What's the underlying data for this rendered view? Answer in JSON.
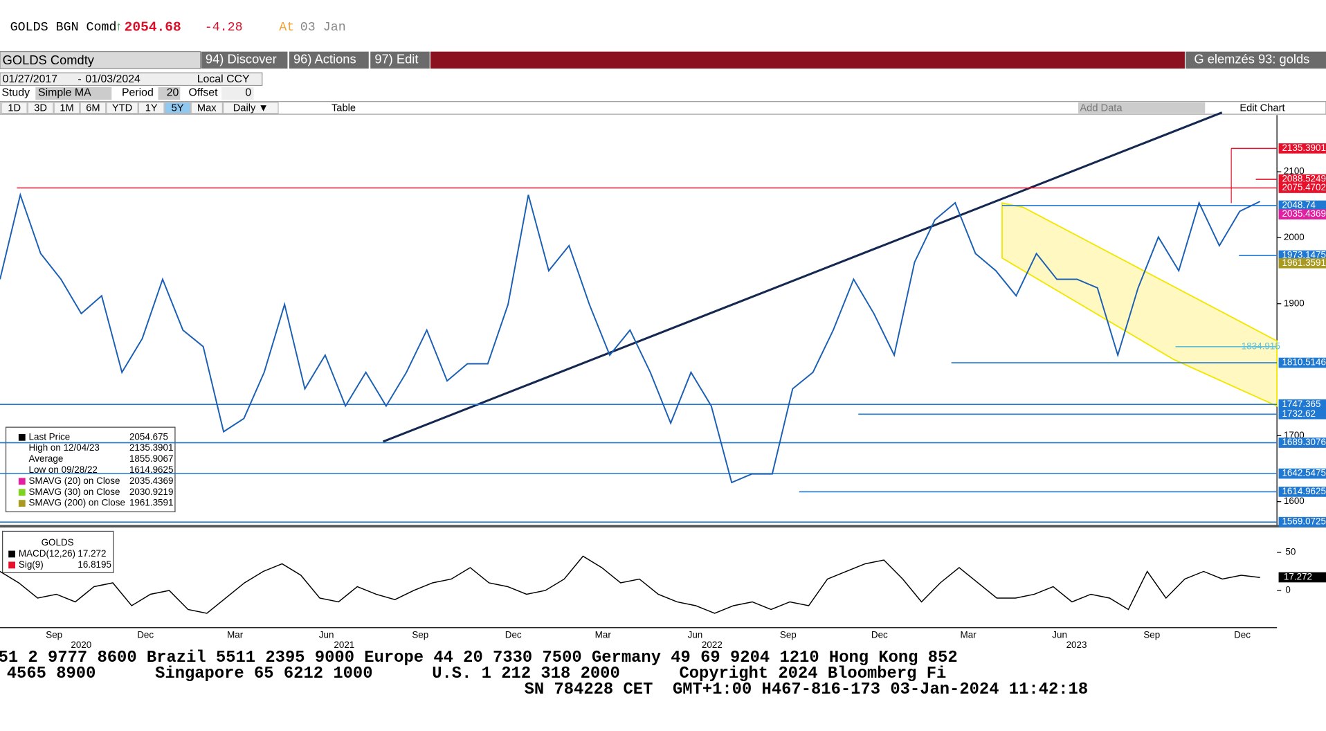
{
  "header": {
    "ticker": "GOLDS BGN Comd",
    "arrow": "↑",
    "price": "2054.68",
    "change": "-4.28",
    "at": "At",
    "date": "03 Jan"
  },
  "toolbar": {
    "security": "GOLDS Comdty",
    "discover": "94) Discover",
    "actions": "96) Actions",
    "edit": "97) Edit",
    "right": "G elemzés 93: golds"
  },
  "range": {
    "start": "01/27/2017",
    "dash": "-",
    "end": "01/03/2024",
    "currency": "Local CCY"
  },
  "study": {
    "label": "Study",
    "value": "Simple MA",
    "period_label": "Period",
    "period": "20",
    "offset_label": "Offset",
    "offset": "0"
  },
  "buttons": [
    "1D",
    "3D",
    "1M",
    "6M",
    "YTD",
    "1Y",
    "5Y",
    "Max",
    "Daily ▼"
  ],
  "table": "Table",
  "add_data": "Add Data",
  "edit_chart": "Edit Chart",
  "chart": {
    "yticks": [
      2100,
      2000,
      1900,
      1700,
      1600
    ],
    "price": [
      1937,
      2065,
      1976,
      1937,
      1885,
      1912,
      1796,
      1847,
      1937,
      1860,
      1835,
      1706,
      1726,
      1796,
      1899,
      1771,
      1822,
      1745,
      1796,
      1745,
      1796,
      1860,
      1783,
      1809,
      1809,
      1899,
      2065,
      1950,
      1988,
      1899,
      1822,
      1860,
      1796,
      1719,
      1796,
      1745,
      1629,
      1642,
      1642,
      1771,
      1796,
      1860,
      1937,
      1885,
      1822,
      1963,
      2027,
      2053,
      1976,
      1950,
      1912,
      1976,
      1937,
      1937,
      1924,
      1822,
      1924,
      2001,
      1950,
      2053,
      1988,
      2040,
      2055
    ],
    "tags": [
      {
        "value": 2135.3901,
        "color": "#e8102a"
      },
      {
        "value": 2088.5249,
        "color": "#e8102a"
      },
      {
        "value": 2075.4702,
        "color": "#e8102a"
      },
      {
        "value": 2048.74,
        "color": "#1f78d1"
      },
      {
        "value": 2035.4369,
        "color": "#e020a0"
      },
      {
        "value": 1973.1475,
        "color": "#1f78d1"
      },
      {
        "value": 1961.3591,
        "color": "#a89a20"
      },
      {
        "value": 1834.915,
        "color": "#5bc0de"
      },
      {
        "value": 1810.5146,
        "color": "#1f78d1"
      },
      {
        "value": 1747.365,
        "color": "#1f78d1"
      },
      {
        "value": 1732.62,
        "color": "#1f78d1"
      },
      {
        "value": 1689.3076,
        "color": "#1f78d1"
      },
      {
        "value": 1642.5475,
        "color": "#1f78d1"
      },
      {
        "value": 1614.9625,
        "color": "#1f78d1"
      },
      {
        "value": 1569.0725,
        "color": "#1f78d1"
      }
    ],
    "legend": [
      {
        "label": "Last Price",
        "value": 2054.675,
        "color": "#000"
      },
      {
        "label": "High on 12/04/23",
        "value": 2135.3901,
        "color": "none"
      },
      {
        "label": "Average",
        "value": 1855.9067,
        "color": "none"
      },
      {
        "label": "Low on 09/28/22",
        "value": 1614.9625,
        "color": "none"
      },
      {
        "label": "SMAVG (20)  on Close",
        "value": 2035.4369,
        "color": "#e020a0"
      },
      {
        "label": "SMAVG (30)  on Close",
        "value": 2030.9219,
        "color": "#7ed321"
      },
      {
        "label": "SMAVG (200)  on Close",
        "value": 1961.3591,
        "color": "#a89a20"
      }
    ],
    "macd_title": "GOLDS",
    "macd_legend": [
      {
        "label": "MACD(12,26)",
        "value": 17.272,
        "color": "#000"
      },
      {
        "label": "Sig(9)",
        "value": 16.8195,
        "color": "#e8102a"
      }
    ],
    "macd_yticks": [
      50,
      0
    ],
    "macd": [
      25,
      10,
      -10,
      -5,
      -15,
      5,
      10,
      -20,
      -5,
      0,
      -25,
      -30,
      -10,
      10,
      25,
      35,
      20,
      -10,
      -15,
      5,
      -5,
      -12,
      0,
      10,
      15,
      30,
      10,
      5,
      -5,
      0,
      15,
      45,
      30,
      10,
      15,
      -5,
      -15,
      -20,
      -30,
      -20,
      -15,
      -25,
      -15,
      -20,
      15,
      25,
      35,
      40,
      15,
      -15,
      10,
      30,
      10,
      -10,
      -10,
      -5,
      5,
      -15,
      -5,
      -10,
      -25,
      25,
      -10,
      15,
      25,
      15,
      20,
      17
    ],
    "months": [
      "Sep",
      "Dec",
      "Mar",
      "Jun",
      "Sep",
      "Dec",
      "Mar",
      "Jun",
      "Sep",
      "Dec",
      "Mar",
      "Jun",
      "Sep",
      "Dec"
    ],
    "years": [
      "2020",
      "2021",
      "2022",
      "2023"
    ]
  },
  "ticker": [
    "51 2 9777 8600 Brazil 5511 2395 9000 Europe 44 20 7330 7500 Germany 49 69 9204 1210 Hong Kong 852",
    "4565 8900      Singapore 65 6212 1000      U.S. 1 212 318 2000      Copyright 2024 Bloomberg Fi",
    "SN 784228 CET  GMT+1:00 H467-816-173 03-Jan-2024 11:42:18"
  ]
}
